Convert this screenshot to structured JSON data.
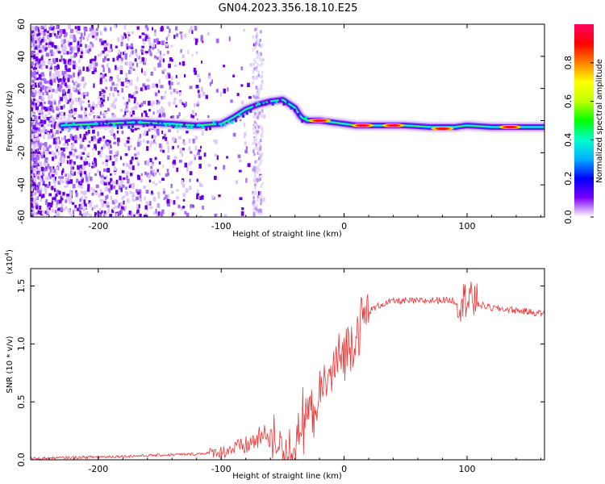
{
  "title": "GN04.2023.356.18.10.E25",
  "colors": {
    "snr_line": "#ee3333",
    "colorbar": [
      "#ffffff",
      "#7a00ff",
      "#0000ff",
      "#00b0ff",
      "#00ffcc",
      "#00ff00",
      "#c0ff00",
      "#ffff00",
      "#ff8000",
      "#ff0000",
      "#ff0060"
    ]
  },
  "chart_data": [
    {
      "type": "heatmap",
      "name": "spectrogram",
      "xlabel": "Height of straight line (km)",
      "ylabel": "Frequency (Hz)",
      "xlim": [
        -255,
        163
      ],
      "ylim": [
        -60,
        60
      ],
      "xticks": [
        -200,
        -100,
        0,
        100
      ],
      "xtick_labels": [
        "-200",
        "-100",
        "0",
        "100"
      ],
      "yticks": [
        60,
        40,
        20,
        0,
        -20,
        -40,
        -60
      ],
      "ytick_labels": [
        "60",
        "40",
        "20",
        "0",
        "-20",
        "-40",
        "-60"
      ],
      "colorbar_label": "Normalized spectral amplitude",
      "colorbar_range": [
        0,
        1
      ],
      "colorbar_ticks": [
        0.0,
        0.2,
        0.4,
        0.6,
        0.8
      ],
      "colorbar_tick_labels": [
        "0.0",
        "0.2",
        "0.4",
        "0.6",
        "0.8"
      ],
      "ridge": {
        "x": [
          -230,
          -200,
          -170,
          -140,
          -120,
          -100,
          -90,
          -80,
          -70,
          -60,
          -50,
          -40,
          -35,
          -30,
          -20,
          -10,
          0,
          10,
          30,
          50,
          70,
          90,
          100,
          120,
          140,
          163
        ],
        "freq": [
          -3,
          -2,
          -1,
          -2,
          -3,
          -2,
          2,
          7,
          10,
          12,
          13,
          8,
          2,
          0,
          0,
          -1,
          -2,
          -3,
          -3,
          -3,
          -4,
          -4,
          -3,
          -4,
          -4,
          -4
        ]
      },
      "peaks": [
        {
          "x": -20,
          "freq": 0
        },
        {
          "x": 15,
          "freq": -3
        },
        {
          "x": 40,
          "freq": -3
        },
        {
          "x": 80,
          "freq": -5
        },
        {
          "x": 135,
          "freq": -4
        }
      ]
    },
    {
      "type": "line",
      "name": "snr",
      "xlabel": "Height of straight line (km)",
      "ylabel": "SNR (10 * v/v)",
      "y_multiplier": "(x10",
      "y_multiplier_exp": "4",
      "y_multiplier_close": ")",
      "xlim": [
        -255,
        163
      ],
      "ylim": [
        0,
        1.65
      ],
      "xticks": [
        -200,
        -100,
        0,
        100
      ],
      "xtick_labels": [
        "-200",
        "-100",
        "0",
        "100"
      ],
      "yticks": [
        0.0,
        0.5,
        1.0,
        1.5
      ],
      "ytick_labels": [
        "0.0",
        "0.5",
        "1.0",
        "1.5"
      ],
      "series": [
        {
          "name": "SNR",
          "x": [
            -255,
            -220,
            -180,
            -150,
            -120,
            -100,
            -80,
            -70,
            -60,
            -50,
            -45,
            -40,
            -35,
            -30,
            -25,
            -20,
            -15,
            -10,
            -5,
            0,
            5,
            10,
            15,
            20,
            30,
            40,
            60,
            80,
            100,
            110,
            120,
            140,
            163
          ],
          "y": [
            0.01,
            0.02,
            0.03,
            0.04,
            0.05,
            0.07,
            0.12,
            0.18,
            0.22,
            0.1,
            0.05,
            0.1,
            0.25,
            0.38,
            0.45,
            0.55,
            0.65,
            0.75,
            0.85,
            0.92,
            1.0,
            1.1,
            1.2,
            1.28,
            1.34,
            1.37,
            1.37,
            1.38,
            1.37,
            1.34,
            1.31,
            1.29,
            1.26
          ]
        }
      ]
    }
  ]
}
